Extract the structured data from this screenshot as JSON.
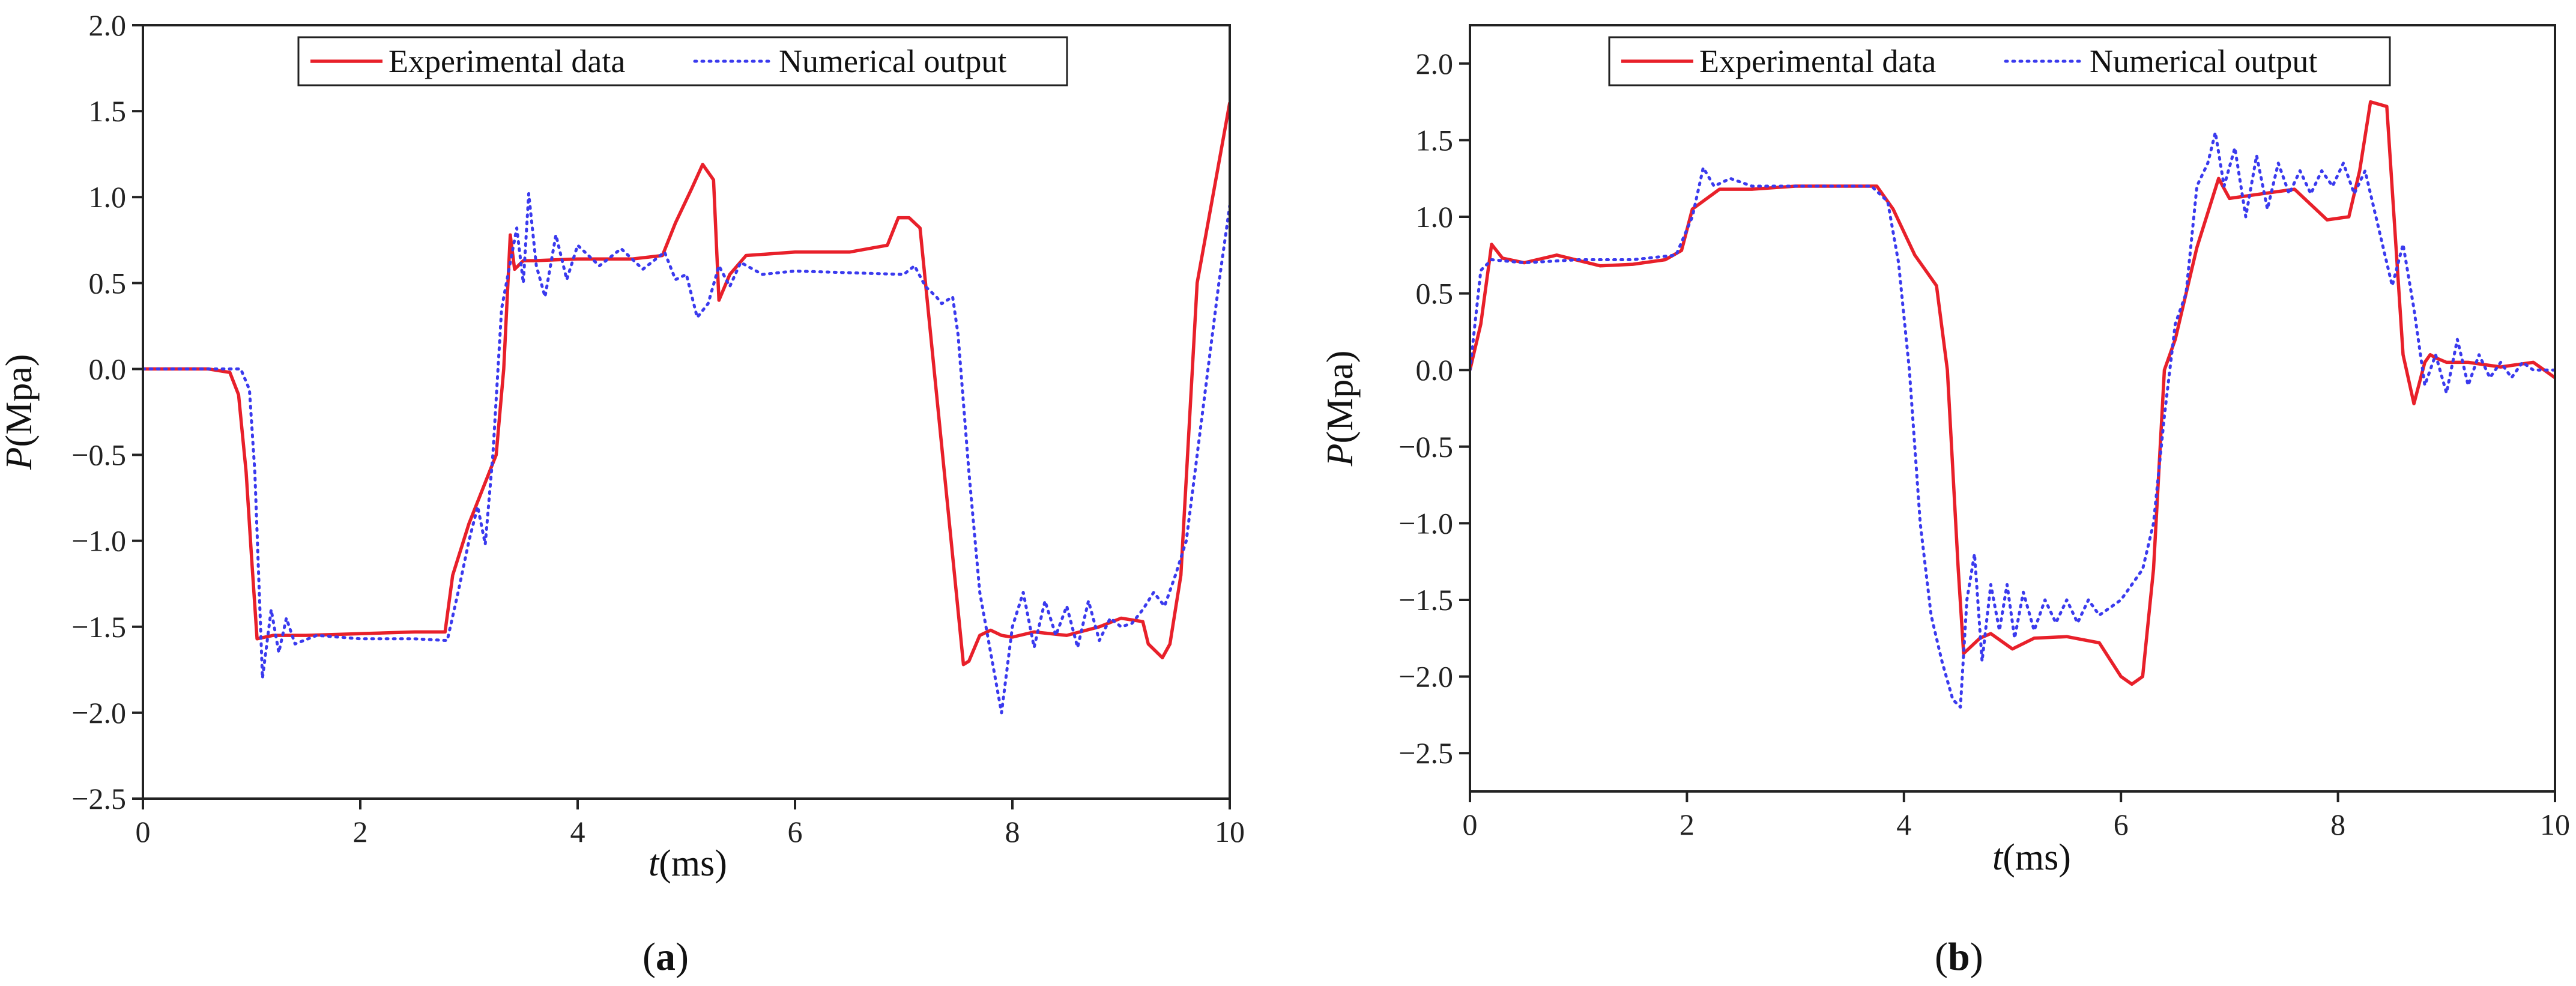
{
  "chart_data": [
    {
      "type": "line",
      "panel_label_prefix": "(",
      "panel_letter": "a",
      "panel_label_suffix": ")",
      "xlabel_var": "t",
      "xlabel_unit": "(ms)",
      "ylabel_var": "P",
      "ylabel_unit": "(Mpa)",
      "xlim": [
        0,
        10
      ],
      "ylim": [
        -2.5,
        2.0
      ],
      "xticks": [
        0,
        2,
        4,
        6,
        8,
        10
      ],
      "xtick_labels": [
        "0",
        "2",
        "4",
        "6",
        "8",
        "10"
      ],
      "yticks": [
        -2.5,
        -2.0,
        -1.5,
        -1.0,
        -0.5,
        0.0,
        0.5,
        1.0,
        1.5,
        2.0
      ],
      "ytick_labels": [
        "−2.5",
        "−2.0",
        "−1.5",
        "−1.0",
        "−0.5",
        "0.0",
        "0.5",
        "1.0",
        "1.5",
        "2.0"
      ],
      "legend_position": "top-center",
      "series": [
        {
          "name": "Experimental data",
          "color": "#e8202a",
          "style": "solid",
          "x": [
            0,
            0.6,
            0.8,
            0.88,
            0.95,
            1.0,
            1.05,
            1.2,
            1.5,
            2.0,
            2.5,
            2.78,
            2.85,
            3.0,
            3.25,
            3.32,
            3.38,
            3.42,
            3.5,
            3.6,
            4.0,
            4.5,
            4.78,
            4.9,
            5.05,
            5.15,
            5.25,
            5.3,
            5.4,
            5.55,
            6.0,
            6.5,
            6.85,
            6.95,
            7.05,
            7.15,
            7.55,
            7.6,
            7.7,
            7.8,
            7.9,
            8.0,
            8.2,
            8.5,
            8.8,
            9.0,
            9.2,
            9.25,
            9.38,
            9.45,
            9.55,
            9.7,
            10.0
          ],
          "y": [
            0,
            0,
            -0.02,
            -0.15,
            -0.6,
            -1.1,
            -1.57,
            -1.55,
            -1.55,
            -1.54,
            -1.53,
            -1.53,
            -1.2,
            -0.9,
            -0.5,
            0.0,
            0.78,
            0.58,
            0.63,
            0.63,
            0.64,
            0.64,
            0.66,
            0.85,
            1.05,
            1.19,
            1.1,
            0.4,
            0.55,
            0.66,
            0.68,
            0.68,
            0.72,
            0.88,
            0.88,
            0.82,
            -1.72,
            -1.7,
            -1.55,
            -1.52,
            -1.55,
            -1.56,
            -1.53,
            -1.55,
            -1.5,
            -1.45,
            -1.47,
            -1.6,
            -1.68,
            -1.6,
            -1.2,
            0.5,
            1.55
          ]
        },
        {
          "name": "Numerical output",
          "color": "#3a3aee",
          "style": "dotted",
          "x": [
            0,
            0.9,
            0.98,
            1.03,
            1.1,
            1.18,
            1.25,
            1.32,
            1.4,
            1.6,
            2.0,
            2.5,
            2.8,
            2.9,
            3.0,
            3.08,
            3.15,
            3.22,
            3.3,
            3.38,
            3.44,
            3.5,
            3.55,
            3.62,
            3.7,
            3.8,
            3.9,
            4.0,
            4.2,
            4.4,
            4.6,
            4.8,
            4.9,
            5.0,
            5.1,
            5.2,
            5.3,
            5.4,
            5.5,
            5.7,
            6.0,
            6.5,
            7.0,
            7.1,
            7.2,
            7.3,
            7.35,
            7.45,
            7.5,
            7.6,
            7.7,
            7.8,
            7.9,
            8.0,
            8.1,
            8.2,
            8.3,
            8.4,
            8.5,
            8.6,
            8.7,
            8.8,
            8.9,
            9.0,
            9.1,
            9.2,
            9.3,
            9.4,
            9.5,
            9.6,
            9.7,
            9.8,
            9.9,
            10.0
          ],
          "y": [
            0,
            0,
            -0.12,
            -0.6,
            -1.8,
            -1.4,
            -1.65,
            -1.45,
            -1.6,
            -1.55,
            -1.57,
            -1.57,
            -1.58,
            -1.3,
            -1.0,
            -0.8,
            -1.02,
            -0.5,
            0.35,
            0.62,
            0.82,
            0.5,
            1.02,
            0.6,
            0.42,
            0.78,
            0.52,
            0.72,
            0.6,
            0.7,
            0.58,
            0.68,
            0.52,
            0.55,
            0.3,
            0.38,
            0.6,
            0.48,
            0.62,
            0.55,
            0.57,
            0.56,
            0.55,
            0.6,
            0.48,
            0.42,
            0.38,
            0.42,
            0.2,
            -0.6,
            -1.3,
            -1.65,
            -2.0,
            -1.5,
            -1.3,
            -1.62,
            -1.35,
            -1.55,
            -1.38,
            -1.62,
            -1.35,
            -1.58,
            -1.45,
            -1.5,
            -1.48,
            -1.4,
            -1.3,
            -1.38,
            -1.2,
            -1.0,
            -0.5,
            0.0,
            0.5,
            0.95
          ]
        }
      ]
    },
    {
      "type": "line",
      "panel_label_prefix": "(",
      "panel_letter": "b",
      "panel_label_suffix": ")",
      "xlabel_var": "t",
      "xlabel_unit": "(ms)",
      "ylabel_var": "P",
      "ylabel_unit": "(Mpa)",
      "xlim": [
        0,
        10
      ],
      "ylim": [
        -2.75,
        2.25
      ],
      "xticks": [
        0,
        2,
        4,
        6,
        8,
        10
      ],
      "xtick_labels": [
        "0",
        "2",
        "4",
        "6",
        "8",
        "10"
      ],
      "yticks": [
        -2.5,
        -2.0,
        -1.5,
        -1.0,
        -0.5,
        0.0,
        0.5,
        1.0,
        1.5,
        2.0
      ],
      "ytick_labels": [
        "−2.5",
        "−2.0",
        "−1.5",
        "−1.0",
        "−0.5",
        "0.0",
        "0.5",
        "1.0",
        "1.5",
        "2.0"
      ],
      "legend_position": "top-center",
      "series": [
        {
          "name": "Experimental data",
          "color": "#e8202a",
          "style": "solid",
          "x": [
            0,
            0.1,
            0.2,
            0.3,
            0.5,
            0.8,
            1.2,
            1.5,
            1.8,
            1.95,
            2.05,
            2.3,
            2.6,
            3.0,
            3.5,
            3.75,
            3.9,
            4.1,
            4.3,
            4.4,
            4.5,
            4.55,
            4.7,
            4.8,
            5.0,
            5.2,
            5.5,
            5.8,
            6.0,
            6.1,
            6.2,
            6.3,
            6.4,
            6.5,
            6.7,
            6.9,
            7.0,
            7.3,
            7.6,
            7.9,
            8.1,
            8.2,
            8.3,
            8.45,
            8.6,
            8.7,
            8.8,
            8.85,
            8.9,
            9.0,
            9.2,
            9.5,
            9.8,
            10.0
          ],
          "y": [
            0,
            0.3,
            0.82,
            0.73,
            0.7,
            0.75,
            0.68,
            0.69,
            0.72,
            0.78,
            1.05,
            1.18,
            1.18,
            1.2,
            1.2,
            1.2,
            1.05,
            0.75,
            0.55,
            0.0,
            -1.3,
            -1.85,
            -1.75,
            -1.72,
            -1.82,
            -1.75,
            -1.74,
            -1.78,
            -2.0,
            -2.05,
            -2.0,
            -1.3,
            0.0,
            0.2,
            0.8,
            1.25,
            1.12,
            1.15,
            1.18,
            0.98,
            1.0,
            1.3,
            1.75,
            1.72,
            0.1,
            -0.22,
            0.05,
            0.1,
            0.08,
            0.05,
            0.05,
            0.02,
            0.05,
            -0.05
          ]
        },
        {
          "name": "Numerical output",
          "color": "#3a3aee",
          "style": "dotted",
          "x": [
            0,
            0.1,
            0.2,
            0.5,
            1.0,
            1.5,
            1.9,
            2.05,
            2.15,
            2.25,
            2.4,
            2.6,
            3.0,
            3.5,
            3.7,
            3.85,
            3.95,
            4.05,
            4.15,
            4.25,
            4.35,
            4.45,
            4.52,
            4.58,
            4.65,
            4.72,
            4.8,
            4.88,
            4.95,
            5.02,
            5.1,
            5.2,
            5.3,
            5.4,
            5.5,
            5.6,
            5.7,
            5.8,
            5.9,
            6.0,
            6.1,
            6.2,
            6.3,
            6.4,
            6.5,
            6.6,
            6.7,
            6.8,
            6.87,
            6.95,
            7.05,
            7.15,
            7.25,
            7.35,
            7.45,
            7.55,
            7.65,
            7.75,
            7.85,
            7.95,
            8.05,
            8.15,
            8.25,
            8.35,
            8.5,
            8.6,
            8.7,
            8.8,
            8.9,
            9.0,
            9.1,
            9.2,
            9.3,
            9.4,
            9.5,
            9.6,
            9.7,
            9.8,
            10.0
          ],
          "y": [
            0,
            0.65,
            0.72,
            0.7,
            0.72,
            0.72,
            0.75,
            1.0,
            1.32,
            1.2,
            1.25,
            1.2,
            1.2,
            1.2,
            1.2,
            1.1,
            0.7,
            0.0,
            -1.0,
            -1.6,
            -1.9,
            -2.15,
            -2.2,
            -1.5,
            -1.2,
            -1.9,
            -1.4,
            -1.7,
            -1.4,
            -1.75,
            -1.45,
            -1.7,
            -1.5,
            -1.65,
            -1.5,
            -1.65,
            -1.5,
            -1.6,
            -1.55,
            -1.5,
            -1.4,
            -1.3,
            -1.0,
            -0.3,
            0.3,
            0.5,
            1.2,
            1.35,
            1.55,
            1.2,
            1.45,
            1.0,
            1.4,
            1.05,
            1.35,
            1.15,
            1.3,
            1.15,
            1.3,
            1.2,
            1.35,
            1.15,
            1.3,
            1.0,
            0.55,
            0.82,
            0.4,
            -0.1,
            0.1,
            -0.15,
            0.2,
            -0.1,
            0.1,
            -0.05,
            0.05,
            -0.05,
            0.05,
            0.0,
            0.0
          ]
        }
      ]
    }
  ]
}
